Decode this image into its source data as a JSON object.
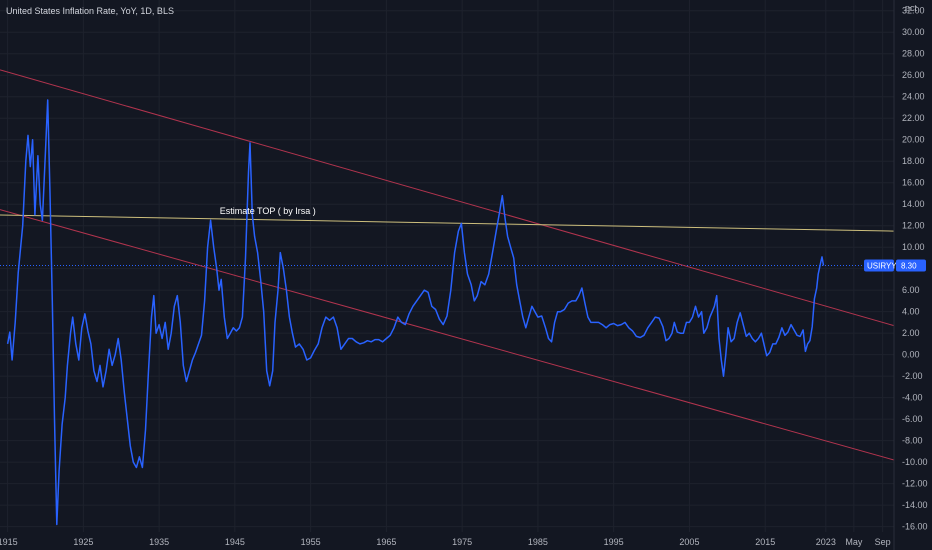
{
  "chart_data": {
    "type": "line",
    "title": "United States Inflation Rate, YoY, 1D, BLS",
    "unit": "pct",
    "ylim": [
      -16.5,
      33
    ],
    "xlim": [
      1914,
      2032
    ],
    "y_ticks": [
      "32.00",
      "30.00",
      "28.00",
      "26.00",
      "24.00",
      "22.00",
      "20.00",
      "18.00",
      "16.00",
      "14.00",
      "12.00",
      "10.00",
      "8.00",
      "6.00",
      "4.00",
      "2.00",
      "0.00",
      "-2.00",
      "-4.00",
      "-6.00",
      "-8.00",
      "-10.00",
      "-12.00",
      "-14.00",
      "-16.00"
    ],
    "x_ticks": [
      {
        "label": "1915",
        "x": 1915
      },
      {
        "label": "1925",
        "x": 1925
      },
      {
        "label": "1935",
        "x": 1935
      },
      {
        "label": "1945",
        "x": 1945
      },
      {
        "label": "1955",
        "x": 1955
      },
      {
        "label": "1965",
        "x": 1965
      },
      {
        "label": "1975",
        "x": 1975
      },
      {
        "label": "1985",
        "x": 1985
      },
      {
        "label": "1995",
        "x": 1995
      },
      {
        "label": "2005",
        "x": 2005
      },
      {
        "label": "2015",
        "x": 2015
      },
      {
        "label": "2023",
        "x": 2023
      },
      {
        "label": "May",
        "x": 2026.7
      },
      {
        "label": "Sep",
        "x": 2030.5
      }
    ],
    "series": [
      {
        "color": "#2962ff",
        "points": [
          [
            1915.0,
            1.0
          ],
          [
            1915.3,
            2.1
          ],
          [
            1915.6,
            -0.5
          ],
          [
            1916.0,
            3.0
          ],
          [
            1916.4,
            7.6
          ],
          [
            1917.0,
            12.0
          ],
          [
            1917.4,
            18.0
          ],
          [
            1917.7,
            20.4
          ],
          [
            1918.0,
            17.5
          ],
          [
            1918.3,
            20.0
          ],
          [
            1918.6,
            13.0
          ],
          [
            1919.0,
            18.5
          ],
          [
            1919.3,
            14.0
          ],
          [
            1919.6,
            12.5
          ],
          [
            1920.0,
            19.0
          ],
          [
            1920.3,
            23.7
          ],
          [
            1920.6,
            15.0
          ],
          [
            1920.9,
            5.0
          ],
          [
            1921.2,
            -6.0
          ],
          [
            1921.5,
            -15.8
          ],
          [
            1921.8,
            -10.8
          ],
          [
            1922.2,
            -6.5
          ],
          [
            1922.6,
            -4.0
          ],
          [
            1922.9,
            -1.0
          ],
          [
            1923.3,
            2.0
          ],
          [
            1923.6,
            3.5
          ],
          [
            1924.0,
            1.0
          ],
          [
            1924.4,
            -0.5
          ],
          [
            1924.8,
            2.5
          ],
          [
            1925.2,
            3.8
          ],
          [
            1925.6,
            2.2
          ],
          [
            1926.0,
            1.0
          ],
          [
            1926.4,
            -1.5
          ],
          [
            1926.8,
            -2.5
          ],
          [
            1927.2,
            -1.0
          ],
          [
            1927.6,
            -3.0
          ],
          [
            1928.0,
            -1.5
          ],
          [
            1928.4,
            0.5
          ],
          [
            1928.8,
            -1.0
          ],
          [
            1929.2,
            0.0
          ],
          [
            1929.6,
            1.5
          ],
          [
            1930.0,
            -0.5
          ],
          [
            1930.4,
            -3.5
          ],
          [
            1930.8,
            -6.0
          ],
          [
            1931.2,
            -8.5
          ],
          [
            1931.6,
            -10.0
          ],
          [
            1932.0,
            -10.5
          ],
          [
            1932.4,
            -9.5
          ],
          [
            1932.8,
            -10.5
          ],
          [
            1933.2,
            -7.0
          ],
          [
            1933.6,
            -1.5
          ],
          [
            1934.0,
            3.5
          ],
          [
            1934.3,
            5.5
          ],
          [
            1934.6,
            2.0
          ],
          [
            1935.0,
            2.8
          ],
          [
            1935.4,
            1.5
          ],
          [
            1935.8,
            3.0
          ],
          [
            1936.2,
            0.5
          ],
          [
            1936.6,
            2.0
          ],
          [
            1937.0,
            4.5
          ],
          [
            1937.4,
            5.5
          ],
          [
            1937.8,
            3.0
          ],
          [
            1938.2,
            -1.0
          ],
          [
            1938.6,
            -2.5
          ],
          [
            1939.0,
            -1.5
          ],
          [
            1939.4,
            -0.5
          ],
          [
            1939.8,
            0.2
          ],
          [
            1940.2,
            1.0
          ],
          [
            1940.6,
            1.8
          ],
          [
            1941.0,
            5.0
          ],
          [
            1941.4,
            10.0
          ],
          [
            1941.8,
            12.5
          ],
          [
            1942.2,
            10.0
          ],
          [
            1942.6,
            8.0
          ],
          [
            1942.9,
            6.0
          ],
          [
            1943.2,
            7.0
          ],
          [
            1943.6,
            3.5
          ],
          [
            1944.0,
            1.5
          ],
          [
            1944.4,
            2.0
          ],
          [
            1944.8,
            2.5
          ],
          [
            1945.2,
            2.2
          ],
          [
            1945.6,
            2.5
          ],
          [
            1946.0,
            3.5
          ],
          [
            1946.4,
            9.0
          ],
          [
            1946.8,
            17.0
          ],
          [
            1947.0,
            19.7
          ],
          [
            1947.3,
            13.0
          ],
          [
            1947.6,
            11.0
          ],
          [
            1948.0,
            9.5
          ],
          [
            1948.4,
            7.0
          ],
          [
            1948.8,
            4.0
          ],
          [
            1949.2,
            -1.5
          ],
          [
            1949.6,
            -2.9
          ],
          [
            1950.0,
            -1.5
          ],
          [
            1950.3,
            3.0
          ],
          [
            1950.7,
            6.0
          ],
          [
            1951.0,
            9.5
          ],
          [
            1951.4,
            8.0
          ],
          [
            1951.8,
            6.0
          ],
          [
            1952.2,
            3.5
          ],
          [
            1952.6,
            2.0
          ],
          [
            1953.0,
            0.7
          ],
          [
            1953.5,
            1.0
          ],
          [
            1954.0,
            0.5
          ],
          [
            1954.5,
            -0.5
          ],
          [
            1955.0,
            -0.3
          ],
          [
            1955.5,
            0.4
          ],
          [
            1956.0,
            1.0
          ],
          [
            1956.5,
            2.5
          ],
          [
            1957.0,
            3.5
          ],
          [
            1957.5,
            3.2
          ],
          [
            1958.0,
            3.5
          ],
          [
            1958.5,
            2.5
          ],
          [
            1959.0,
            0.5
          ],
          [
            1959.5,
            1.0
          ],
          [
            1960.0,
            1.5
          ],
          [
            1960.5,
            1.5
          ],
          [
            1961.0,
            1.2
          ],
          [
            1961.5,
            1.0
          ],
          [
            1962.0,
            1.1
          ],
          [
            1962.5,
            1.3
          ],
          [
            1963.0,
            1.2
          ],
          [
            1963.5,
            1.4
          ],
          [
            1964.0,
            1.4
          ],
          [
            1964.5,
            1.2
          ],
          [
            1965.0,
            1.5
          ],
          [
            1965.5,
            1.8
          ],
          [
            1966.0,
            2.5
          ],
          [
            1966.5,
            3.5
          ],
          [
            1967.0,
            3.0
          ],
          [
            1967.5,
            2.8
          ],
          [
            1968.0,
            3.8
          ],
          [
            1968.5,
            4.5
          ],
          [
            1969.0,
            5.0
          ],
          [
            1969.5,
            5.5
          ],
          [
            1970.0,
            6.0
          ],
          [
            1970.5,
            5.8
          ],
          [
            1971.0,
            4.5
          ],
          [
            1971.5,
            4.2
          ],
          [
            1972.0,
            3.3
          ],
          [
            1972.5,
            2.8
          ],
          [
            1973.0,
            3.6
          ],
          [
            1973.5,
            6.0
          ],
          [
            1974.0,
            9.5
          ],
          [
            1974.5,
            11.5
          ],
          [
            1974.9,
            12.2
          ],
          [
            1975.3,
            9.5
          ],
          [
            1975.7,
            7.5
          ],
          [
            1976.2,
            6.5
          ],
          [
            1976.6,
            5.0
          ],
          [
            1977.0,
            5.5
          ],
          [
            1977.5,
            6.8
          ],
          [
            1978.0,
            6.5
          ],
          [
            1978.5,
            7.5
          ],
          [
            1979.0,
            9.5
          ],
          [
            1979.5,
            11.5
          ],
          [
            1980.0,
            13.5
          ],
          [
            1980.3,
            14.8
          ],
          [
            1980.7,
            12.5
          ],
          [
            1981.0,
            11.0
          ],
          [
            1981.4,
            10.0
          ],
          [
            1981.8,
            9.0
          ],
          [
            1982.2,
            6.5
          ],
          [
            1982.6,
            5.0
          ],
          [
            1983.0,
            3.5
          ],
          [
            1983.4,
            2.5
          ],
          [
            1983.8,
            3.5
          ],
          [
            1984.2,
            4.5
          ],
          [
            1984.6,
            4.0
          ],
          [
            1985.0,
            3.5
          ],
          [
            1985.5,
            3.6
          ],
          [
            1986.0,
            2.5
          ],
          [
            1986.4,
            1.5
          ],
          [
            1986.8,
            1.2
          ],
          [
            1987.2,
            3.0
          ],
          [
            1987.6,
            4.0
          ],
          [
            1988.0,
            4.0
          ],
          [
            1988.5,
            4.2
          ],
          [
            1989.0,
            4.8
          ],
          [
            1989.5,
            5.0
          ],
          [
            1990.0,
            5.0
          ],
          [
            1990.4,
            5.5
          ],
          [
            1990.8,
            6.2
          ],
          [
            1991.2,
            4.8
          ],
          [
            1991.6,
            3.5
          ],
          [
            1992.0,
            3.0
          ],
          [
            1992.5,
            3.0
          ],
          [
            1993.0,
            3.0
          ],
          [
            1993.5,
            2.8
          ],
          [
            1994.0,
            2.5
          ],
          [
            1994.5,
            2.8
          ],
          [
            1995.0,
            2.9
          ],
          [
            1995.5,
            2.7
          ],
          [
            1996.0,
            2.8
          ],
          [
            1996.5,
            3.0
          ],
          [
            1997.0,
            2.5
          ],
          [
            1997.5,
            2.2
          ],
          [
            1998.0,
            1.7
          ],
          [
            1998.5,
            1.6
          ],
          [
            1999.0,
            1.8
          ],
          [
            1999.5,
            2.5
          ],
          [
            2000.0,
            3.0
          ],
          [
            2000.5,
            3.5
          ],
          [
            2001.0,
            3.4
          ],
          [
            2001.5,
            2.6
          ],
          [
            2001.9,
            1.3
          ],
          [
            2002.3,
            1.5
          ],
          [
            2002.7,
            2.0
          ],
          [
            2003.0,
            3.0
          ],
          [
            2003.4,
            2.1
          ],
          [
            2003.8,
            2.0
          ],
          [
            2004.2,
            2.0
          ],
          [
            2004.6,
            3.0
          ],
          [
            2005.0,
            3.0
          ],
          [
            2005.4,
            3.5
          ],
          [
            2005.8,
            4.5
          ],
          [
            2006.2,
            3.5
          ],
          [
            2006.6,
            4.0
          ],
          [
            2006.9,
            2.0
          ],
          [
            2007.3,
            2.5
          ],
          [
            2007.7,
            3.5
          ],
          [
            2008.0,
            4.0
          ],
          [
            2008.3,
            4.5
          ],
          [
            2008.6,
            5.5
          ],
          [
            2008.9,
            1.5
          ],
          [
            2009.2,
            -0.5
          ],
          [
            2009.5,
            -2.0
          ],
          [
            2009.8,
            0.0
          ],
          [
            2010.1,
            2.5
          ],
          [
            2010.5,
            1.2
          ],
          [
            2010.9,
            1.5
          ],
          [
            2011.3,
            3.0
          ],
          [
            2011.7,
            3.9
          ],
          [
            2012.1,
            2.8
          ],
          [
            2012.5,
            1.7
          ],
          [
            2012.9,
            2.0
          ],
          [
            2013.3,
            1.5
          ],
          [
            2013.7,
            1.2
          ],
          [
            2014.1,
            1.5
          ],
          [
            2014.5,
            2.0
          ],
          [
            2014.9,
            0.8
          ],
          [
            2015.2,
            -0.1
          ],
          [
            2015.6,
            0.2
          ],
          [
            2016.0,
            1.0
          ],
          [
            2016.4,
            1.0
          ],
          [
            2016.8,
            1.6
          ],
          [
            2017.2,
            2.5
          ],
          [
            2017.6,
            1.8
          ],
          [
            2018.0,
            2.1
          ],
          [
            2018.4,
            2.8
          ],
          [
            2018.8,
            2.3
          ],
          [
            2019.2,
            1.8
          ],
          [
            2019.6,
            1.7
          ],
          [
            2020.0,
            2.3
          ],
          [
            2020.3,
            0.3
          ],
          [
            2020.6,
            1.0
          ],
          [
            2020.9,
            1.3
          ],
          [
            2021.2,
            2.6
          ],
          [
            2021.5,
            5.2
          ],
          [
            2021.8,
            6.2
          ],
          [
            2022.0,
            7.5
          ],
          [
            2022.3,
            8.5
          ],
          [
            2022.5,
            9.1
          ],
          [
            2022.7,
            8.3
          ]
        ]
      }
    ],
    "trend_lines": [
      {
        "from": [
          1914,
          26.5
        ],
        "to": [
          2032,
          2.7
        ],
        "color": "#b2344e"
      },
      {
        "from": [
          1914,
          13.5
        ],
        "to": [
          2032,
          -9.8
        ],
        "color": "#b2344e"
      },
      {
        "from": [
          1914,
          13.0
        ],
        "to": [
          2032,
          11.5
        ],
        "color": "#cdbf7d"
      }
    ],
    "annotation": {
      "text": "Estimate TOP ( by Irsa )",
      "x": 1943.0,
      "y": 13.1
    },
    "last_value": {
      "symbol": "USIRYY",
      "value_label": "8.30",
      "value": 8.3,
      "color": "#2962ff"
    },
    "price_line_color": "#2962ff"
  }
}
